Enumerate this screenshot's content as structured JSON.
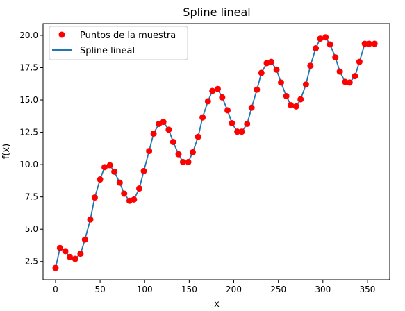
{
  "chart_data": {
    "type": "line",
    "title": "Spline lineal",
    "xlabel": "x",
    "ylabel": "f(x)",
    "xlim": [
      -14,
      375
    ],
    "ylim": [
      1.09,
      20.91
    ],
    "xticks": [
      0,
      50,
      100,
      150,
      200,
      250,
      300,
      350
    ],
    "xtick_labels": [
      "0",
      "50",
      "100",
      "150",
      "200",
      "250",
      "300",
      "350"
    ],
    "yticks": [
      2.5,
      5.0,
      7.5,
      10.0,
      12.5,
      15.0,
      17.5,
      20.0
    ],
    "ytick_labels": [
      "2.5",
      "5.0",
      "7.5",
      "10.0",
      "12.5",
      "15.0",
      "17.5",
      "20.0"
    ],
    "grid": false,
    "legend_position": "top-left",
    "x": [
      0,
      5,
      11,
      16,
      22,
      28,
      33,
      39,
      44,
      50,
      55,
      61,
      66,
      72,
      77,
      83,
      88,
      94,
      99,
      105,
      110,
      116,
      121,
      127,
      132,
      138,
      143,
      149,
      154,
      160,
      165,
      171,
      176,
      182,
      187,
      193,
      198,
      204,
      209,
      215,
      220,
      226,
      231,
      237,
      242,
      248,
      253,
      259,
      264,
      270,
      275,
      281,
      286,
      292,
      297,
      303,
      308,
      314,
      319,
      325,
      330,
      336,
      341,
      347,
      352,
      358
    ],
    "series": [
      {
        "name": "Puntos de la muestra",
        "kind": "scatter",
        "color": "#ff0000",
        "values": [
          2.0,
          3.55,
          3.3,
          2.85,
          2.7,
          3.1,
          4.2,
          5.75,
          7.45,
          8.85,
          9.8,
          9.95,
          9.45,
          8.6,
          7.75,
          7.2,
          7.3,
          8.15,
          9.5,
          11.05,
          12.4,
          13.15,
          13.3,
          12.7,
          11.75,
          10.8,
          10.2,
          10.2,
          10.95,
          12.15,
          13.65,
          14.9,
          15.7,
          15.85,
          15.2,
          14.2,
          13.2,
          12.55,
          12.55,
          13.15,
          14.4,
          15.8,
          17.1,
          17.85,
          17.95,
          17.35,
          16.35,
          15.3,
          14.6,
          14.5,
          15.05,
          16.2,
          17.65,
          19.0,
          19.75,
          19.85,
          19.3,
          18.3,
          17.2,
          16.4,
          16.35,
          16.85,
          17.95,
          19.35,
          19.35,
          19.35
        ]
      },
      {
        "name": "Spline lineal",
        "kind": "line",
        "color": "#1f77b4"
      }
    ]
  }
}
